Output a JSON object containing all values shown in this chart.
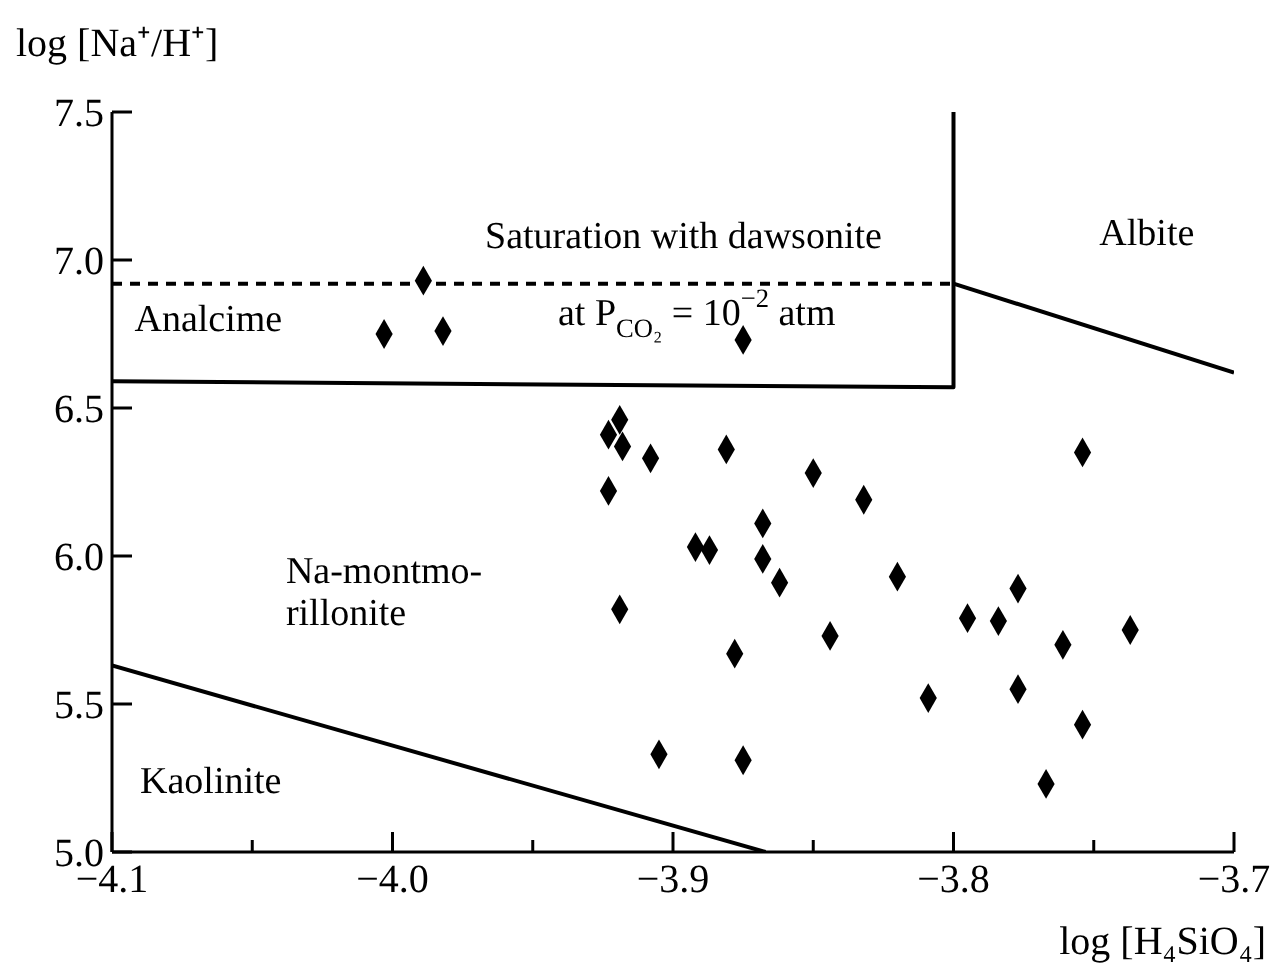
{
  "chart_data": {
    "type": "scatter",
    "xlabel": "log [H₄SiO₄]",
    "ylabel": "log [Na⁺/H⁺]",
    "xlim": [
      -4.1,
      -3.7
    ],
    "ylim": [
      5.0,
      7.5
    ],
    "xticks": [
      {
        "value": -4.1,
        "label": "−4.1"
      },
      {
        "value": -4.05,
        "label": null
      },
      {
        "value": -4.0,
        "label": "−4.0"
      },
      {
        "value": -3.95,
        "label": null
      },
      {
        "value": -3.9,
        "label": "−3.9"
      },
      {
        "value": -3.85,
        "label": null
      },
      {
        "value": -3.8,
        "label": "−3.8"
      },
      {
        "value": -3.75,
        "label": null
      },
      {
        "value": -3.7,
        "label": "−3.7"
      }
    ],
    "yticks": [
      {
        "value": 5.0,
        "label": "5.0"
      },
      {
        "value": 5.5,
        "label": "5.5"
      },
      {
        "value": 6.0,
        "label": "6.0"
      },
      {
        "value": 6.5,
        "label": "6.5"
      },
      {
        "value": 7.0,
        "label": "7.0"
      },
      {
        "value": 7.5,
        "label": "7.5"
      }
    ],
    "grid": false,
    "series": [
      {
        "color": "#000000",
        "marker": "diamond",
        "x": [
          -3.989,
          -4.003,
          -3.982,
          -3.875,
          -3.919,
          -3.923,
          -3.918,
          -3.908,
          -3.881,
          -3.85,
          -3.832,
          -3.754,
          -3.923,
          -3.868,
          -3.892,
          -3.887,
          -3.868,
          -3.862,
          -3.82,
          -3.777,
          -3.919,
          -3.795,
          -3.784,
          -3.844,
          -3.761,
          -3.737,
          -3.878,
          -3.809,
          -3.777,
          -3.754,
          -3.905,
          -3.875,
          -3.767
        ],
        "values": [
          6.93,
          6.75,
          6.76,
          6.73,
          6.46,
          6.41,
          6.37,
          6.33,
          6.36,
          6.28,
          6.19,
          6.35,
          6.22,
          6.11,
          6.03,
          6.02,
          5.99,
          5.91,
          5.93,
          5.89,
          5.82,
          5.79,
          5.78,
          5.73,
          5.7,
          5.75,
          5.67,
          5.52,
          5.55,
          5.43,
          5.33,
          5.31,
          5.23
        ]
      },
      {
        "type": "line",
        "color": "#000000",
        "line_style": "solid",
        "x": [
          -4.1,
          -3.8,
          -3.8
        ],
        "values": [
          6.59,
          6.57,
          7.5
        ]
      },
      {
        "type": "line",
        "color": "#000000",
        "line_style": "solid",
        "x": [
          -3.8,
          -3.7
        ],
        "values": [
          6.92,
          6.62
        ]
      },
      {
        "type": "line",
        "color": "#000000",
        "line_style": "solid",
        "x": [
          -4.1,
          -3.867
        ],
        "values": [
          5.63,
          5.0
        ]
      },
      {
        "type": "line",
        "color": "#000000",
        "line_style": "dashed",
        "x": [
          -4.1,
          -3.8
        ],
        "values": [
          6.92,
          6.92
        ]
      }
    ],
    "annotations": [
      "Analcime",
      "Saturation with dawsonite",
      "at P$_{CO₂}$ = 10$^{−2}$ atm",
      "Albite",
      "Na-montmo-\nrillonite",
      "Kaolinite"
    ]
  }
}
